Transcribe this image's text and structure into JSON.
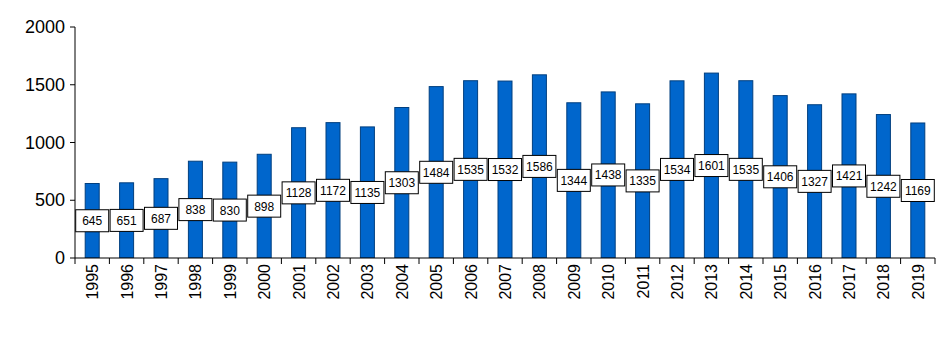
{
  "chart_data": {
    "type": "bar",
    "categories": [
      "1995",
      "1996",
      "1997",
      "1998",
      "1999",
      "2000",
      "2001",
      "2002",
      "2003",
      "2004",
      "2005",
      "2006",
      "2007",
      "2008",
      "2009",
      "2010",
      "2011",
      "2012",
      "2013",
      "2014",
      "2015",
      "2016",
      "2017",
      "2018",
      "2019"
    ],
    "values": [
      645,
      651,
      687,
      838,
      830,
      898,
      1128,
      1172,
      1135,
      1303,
      1484,
      1535,
      1532,
      1586,
      1344,
      1438,
      1335,
      1534,
      1601,
      1535,
      1406,
      1327,
      1421,
      1242,
      1169
    ],
    "color": "#0066cc",
    "ylim": [
      0,
      2000
    ],
    "yticks": [
      0,
      500,
      1000,
      1500,
      2000
    ],
    "grid": false,
    "data_labels": true
  }
}
